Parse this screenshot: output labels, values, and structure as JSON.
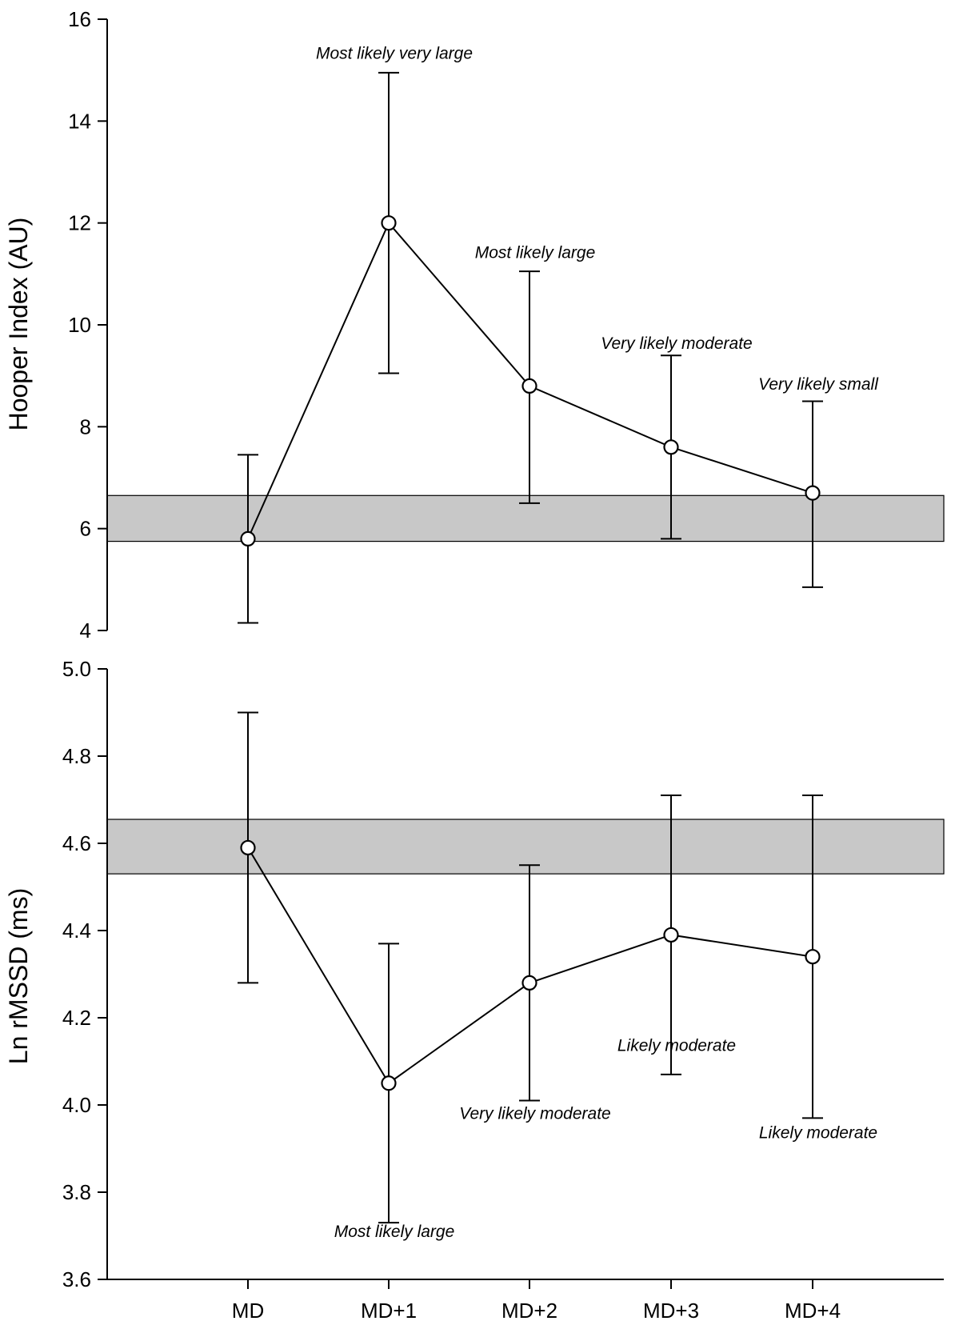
{
  "chart_data": [
    {
      "type": "line",
      "panel": "top",
      "ylabel": "Hooper Index (AU)",
      "xlabel": "",
      "ylim": [
        4,
        16
      ],
      "yticks": [
        4,
        6,
        8,
        10,
        12,
        14,
        16
      ],
      "ytick_labels": [
        "4",
        "6",
        "8",
        "10",
        "12",
        "14",
        "16"
      ],
      "categories": [
        "MD",
        "MD+1",
        "MD+2",
        "MD+3",
        "MD+4"
      ],
      "series": [
        {
          "name": "Hooper Index",
          "values": [
            5.8,
            12.0,
            8.8,
            7.6,
            6.7
          ],
          "error_low": [
            4.15,
            9.05,
            6.5,
            5.8,
            4.85
          ],
          "error_high": [
            7.45,
            14.95,
            11.05,
            9.4,
            8.5
          ]
        }
      ],
      "reference_band": {
        "low": 5.75,
        "high": 6.65,
        "color": "#c8c8c8"
      },
      "annotations": [
        {
          "category": "MD+1",
          "text": "Most likely very large"
        },
        {
          "category": "MD+2",
          "text": "Most likely large"
        },
        {
          "category": "MD+3",
          "text": "Very likely moderate"
        },
        {
          "category": "MD+4",
          "text": "Very likely small"
        }
      ]
    },
    {
      "type": "line",
      "panel": "bottom",
      "ylabel": "Ln rMSSD (ms)",
      "xlabel": "",
      "ylim": [
        3.6,
        5.0
      ],
      "yticks": [
        3.6,
        3.8,
        4.0,
        4.2,
        4.4,
        4.6,
        4.8,
        5.0
      ],
      "ytick_labels": [
        "3.6",
        "3.8",
        "4.0",
        "4.2",
        "4.4",
        "4.6",
        "4.8",
        "5.0"
      ],
      "categories": [
        "MD",
        "MD+1",
        "MD+2",
        "MD+3",
        "MD+4"
      ],
      "xtick_labels": [
        "MD",
        "MD+1",
        "MD+2",
        "MD+3",
        "MD+4"
      ],
      "series": [
        {
          "name": "Ln rMSSD",
          "values": [
            4.59,
            4.05,
            4.28,
            4.39,
            4.34
          ],
          "error_low": [
            4.28,
            3.73,
            4.01,
            4.07,
            3.97
          ],
          "error_high": [
            4.9,
            4.37,
            4.55,
            4.71,
            4.71
          ]
        }
      ],
      "reference_band": {
        "low": 4.53,
        "high": 4.655,
        "color": "#c8c8c8"
      },
      "annotations": [
        {
          "category": "MD+1",
          "text": "Most likely large"
        },
        {
          "category": "MD+2",
          "text": "Very likely moderate"
        },
        {
          "category": "MD+3",
          "text": "Likely moderate"
        },
        {
          "category": "MD+4",
          "text": "Likely moderate"
        }
      ]
    }
  ]
}
